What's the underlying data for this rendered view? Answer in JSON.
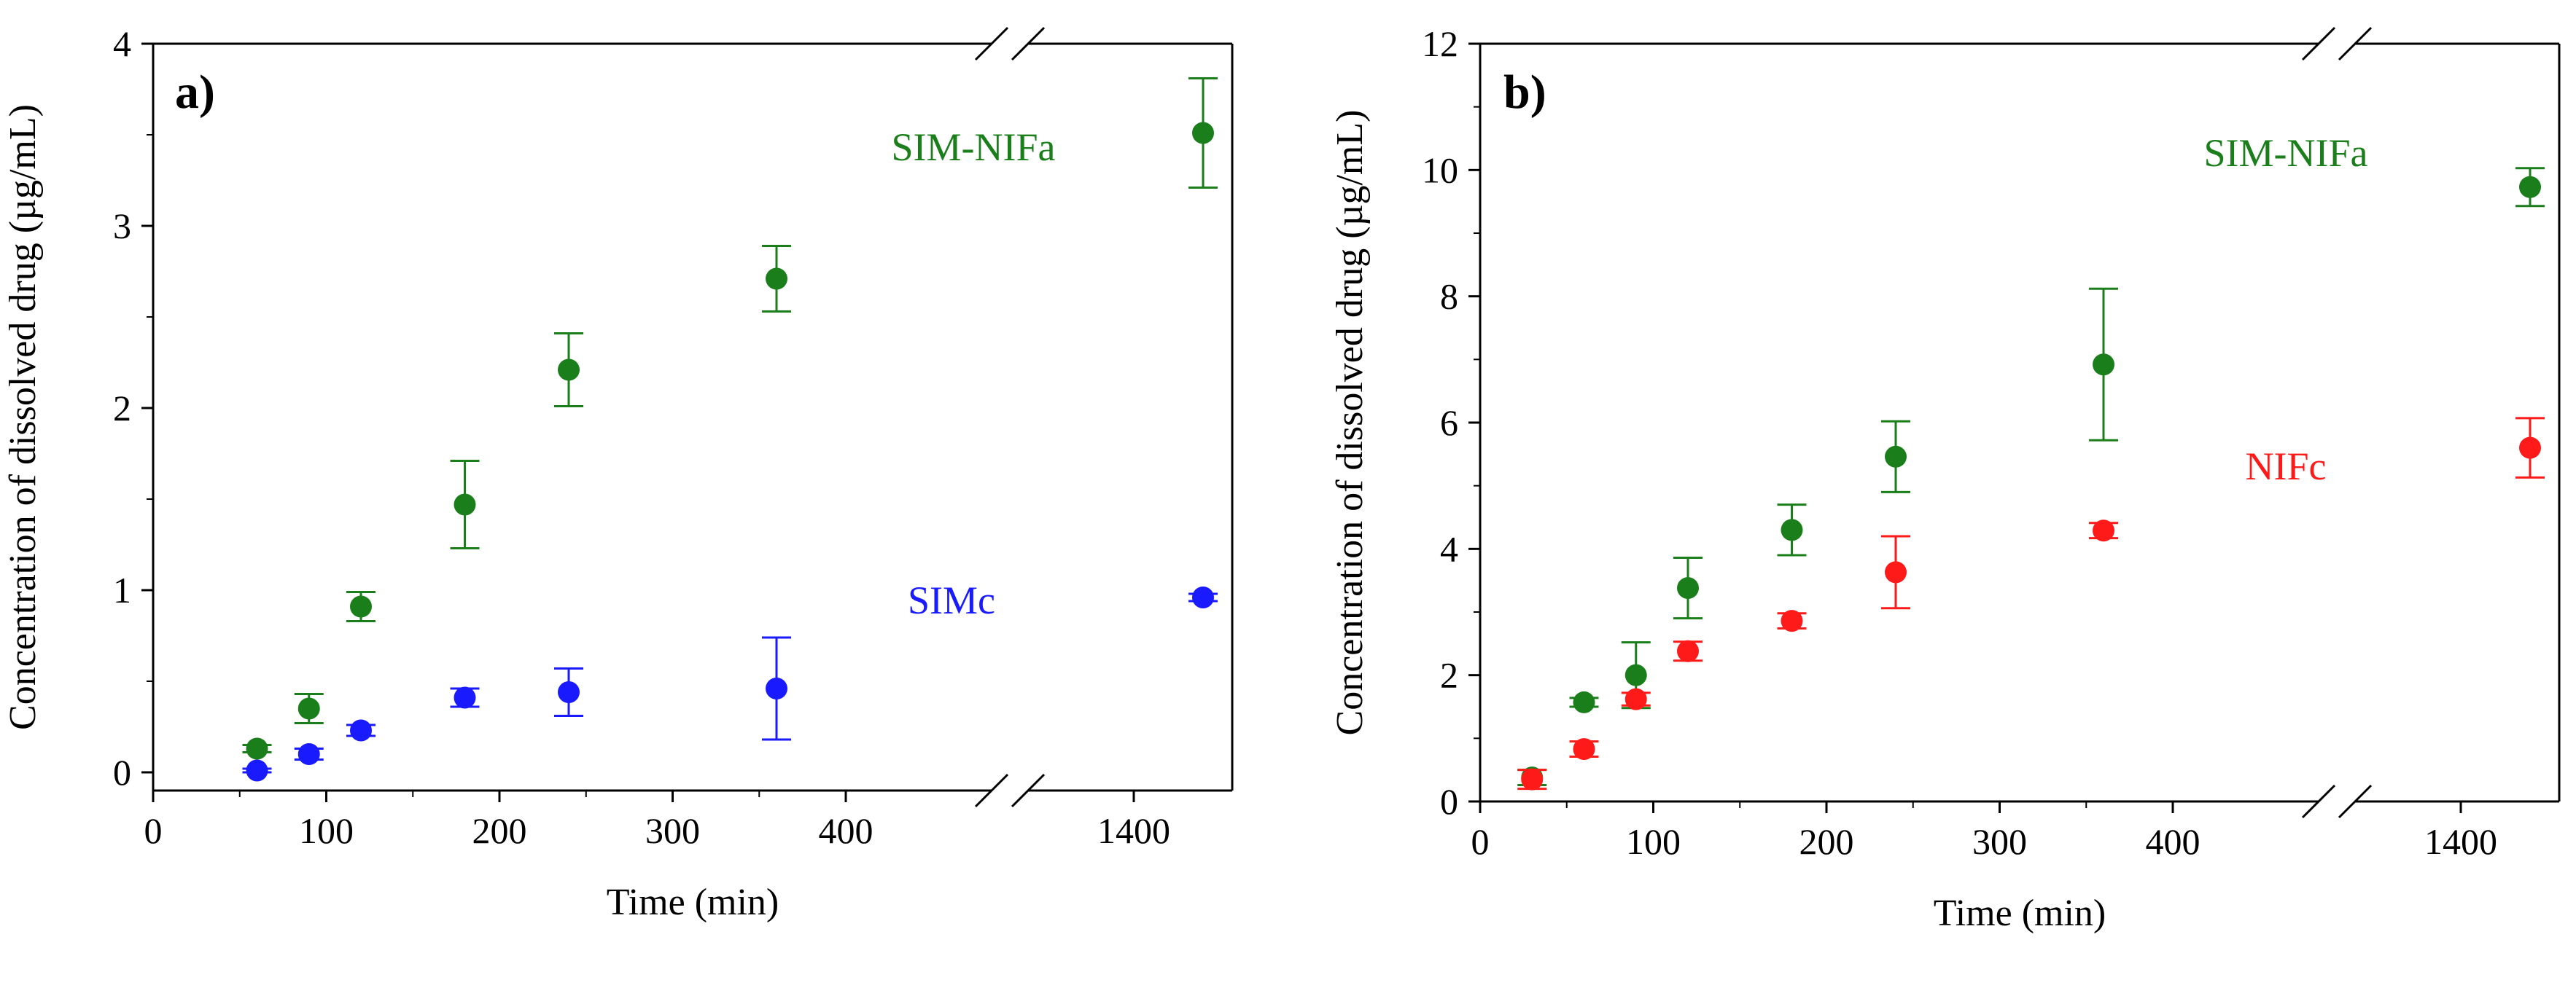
{
  "chart_data": [
    {
      "type": "scatter",
      "panel_label": "a)",
      "xlabel": "Time (min)",
      "ylabel": "Concentration of dissolved drug (µg/mL)",
      "xlim": [
        0,
        1500
      ],
      "x_axis_break": [
        400,
        1400
      ],
      "ylim": [
        -0.1,
        4
      ],
      "x_ticks": [
        0,
        100,
        200,
        300,
        400,
        1400
      ],
      "x_tick_labels": [
        "0",
        "100",
        "200",
        "300",
        "400",
        "1400"
      ],
      "y_ticks": [
        0,
        1,
        2,
        3,
        4
      ],
      "y_tick_labels": [
        "0",
        "1",
        "2",
        "3",
        "4"
      ],
      "series": [
        {
          "name": "SIM-NIFa",
          "color": "#1a7f1a",
          "x": [
            60,
            90,
            120,
            180,
            240,
            360,
            1440
          ],
          "y": [
            0.13,
            0.35,
            0.91,
            1.47,
            2.21,
            2.71,
            3.51
          ],
          "err": [
            0.02,
            0.08,
            0.08,
            0.24,
            0.2,
            0.18,
            0.3
          ]
        },
        {
          "name": "SIMc",
          "color": "#1a1aff",
          "x": [
            60,
            90,
            120,
            180,
            240,
            360,
            1440
          ],
          "y": [
            0.01,
            0.1,
            0.23,
            0.41,
            0.44,
            0.46,
            0.96
          ],
          "err": [
            0.01,
            0.03,
            0.03,
            0.05,
            0.13,
            0.28,
            0.02
          ]
        }
      ]
    },
    {
      "type": "scatter",
      "panel_label": "b)",
      "xlabel": "Time (min)",
      "ylabel": "Concentration of dissolved drug (µg/mL)",
      "xlim": [
        0,
        1500
      ],
      "x_axis_break": [
        400,
        1400
      ],
      "ylim": [
        0,
        12
      ],
      "x_ticks": [
        0,
        100,
        200,
        300,
        400,
        1400
      ],
      "x_tick_labels": [
        "0",
        "100",
        "200",
        "300",
        "400",
        "1400"
      ],
      "y_ticks": [
        0,
        2,
        4,
        6,
        8,
        10,
        12
      ],
      "y_tick_labels": [
        "0",
        "2",
        "4",
        "6",
        "8",
        "10",
        "12"
      ],
      "series": [
        {
          "name": "SIM-NIFa",
          "color": "#1a7f1a",
          "x": [
            30,
            60,
            90,
            120,
            180,
            240,
            360,
            1440
          ],
          "y": [
            0.38,
            1.57,
            2.0,
            3.38,
            4.3,
            5.46,
            6.92,
            9.73
          ],
          "err": [
            0.12,
            0.07,
            0.52,
            0.48,
            0.4,
            0.56,
            1.2,
            0.3
          ]
        },
        {
          "name": "NIFc",
          "color": "#ff1a1a",
          "x": [
            30,
            60,
            90,
            120,
            180,
            240,
            360,
            1440
          ],
          "y": [
            0.35,
            0.83,
            1.62,
            2.38,
            2.86,
            3.63,
            4.29,
            5.6
          ],
          "err": [
            0.15,
            0.12,
            0.1,
            0.15,
            0.12,
            0.57,
            0.12,
            0.47
          ]
        }
      ]
    }
  ]
}
